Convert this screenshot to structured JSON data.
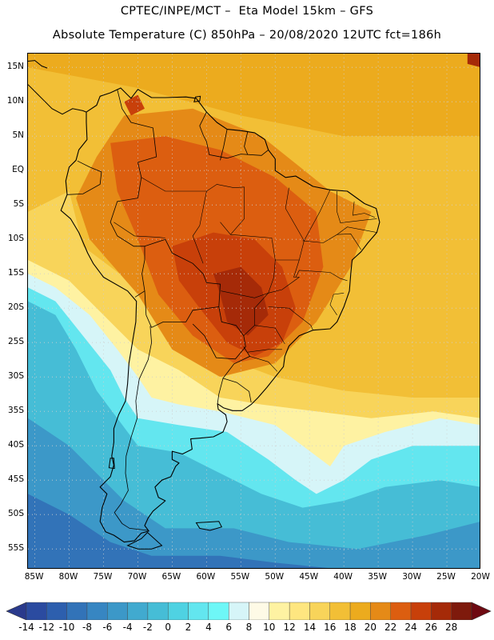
{
  "header": {
    "title_line1": "CPTEC/INPE/MCT –  Eta Model 15km – GFS",
    "title_line2": "Absolute Temperature (C) 850hPa – 20/08/2020 12UTC fct=186h"
  },
  "map": {
    "lat_labels": [
      "15N",
      "10N",
      "5N",
      "EQ",
      "5S",
      "10S",
      "15S",
      "20S",
      "25S",
      "30S",
      "35S",
      "40S",
      "45S",
      "50S",
      "55S"
    ],
    "lat_values": [
      15,
      10,
      5,
      0,
      -5,
      -10,
      -15,
      -20,
      -25,
      -30,
      -35,
      -40,
      -45,
      -50,
      -55
    ],
    "lon_labels": [
      "85W",
      "80W",
      "75W",
      "70W",
      "65W",
      "60W",
      "55W",
      "50W",
      "45W",
      "40W",
      "35W",
      "30W",
      "25W",
      "20W"
    ],
    "lon_values": [
      -85,
      -80,
      -75,
      -70,
      -65,
      -60,
      -55,
      -50,
      -45,
      -40,
      -35,
      -30,
      -25,
      -20
    ],
    "extent": {
      "lon_min": -86,
      "lon_max": -20,
      "lat_min": -58,
      "lat_max": 17
    },
    "gridlines": "dotted"
  },
  "colorbar": {
    "labels": [
      "-14",
      "-12",
      "-10",
      "-8",
      "-6",
      "-4",
      "-2",
      "0",
      "2",
      "4",
      "6",
      "8",
      "10",
      "12",
      "14",
      "16",
      "18",
      "20",
      "22",
      "24",
      "26",
      "28"
    ],
    "low_arrow_color": "#2a3a8c",
    "high_arrow_color": "#6e0a12",
    "colors": [
      "#2b4ba0",
      "#2d5fae",
      "#3273b8",
      "#3786c2",
      "#3c98c8",
      "#41aacf",
      "#46bdd6",
      "#4fd2e2",
      "#63e6ef",
      "#6ef7f7",
      "#d6f5f8",
      "#fefae6",
      "#fef2a2",
      "#fee680",
      "#f8d45a",
      "#f2bf36",
      "#ecab1e",
      "#e58a17",
      "#dc5e10",
      "#c8400a",
      "#a52a08",
      "#7e1a0c"
    ]
  },
  "scale": {
    "temperature_colors": [
      {
        "t": -14,
        "c": "#2b4ba0"
      },
      {
        "t": -12,
        "c": "#2d5fae"
      },
      {
        "t": -10,
        "c": "#3273b8"
      },
      {
        "t": -8,
        "c": "#3786c2"
      },
      {
        "t": -6,
        "c": "#3c98c8"
      },
      {
        "t": -4,
        "c": "#41aacf"
      },
      {
        "t": -2,
        "c": "#46bdd6"
      },
      {
        "t": 0,
        "c": "#4fd2e2"
      },
      {
        "t": 2,
        "c": "#63e6ef"
      },
      {
        "t": 4,
        "c": "#6ef7f7"
      },
      {
        "t": 6,
        "c": "#d6f5f8"
      },
      {
        "t": 8,
        "c": "#fefae6"
      },
      {
        "t": 10,
        "c": "#fef2a2"
      },
      {
        "t": 12,
        "c": "#fee680"
      },
      {
        "t": 14,
        "c": "#f8d45a"
      },
      {
        "t": 16,
        "c": "#f2bf36"
      },
      {
        "t": 18,
        "c": "#ecab1e"
      },
      {
        "t": 20,
        "c": "#e58a17"
      },
      {
        "t": 22,
        "c": "#dc5e10"
      },
      {
        "t": 24,
        "c": "#c8400a"
      },
      {
        "t": 26,
        "c": "#a52a08"
      },
      {
        "t": 28,
        "c": "#7e1a0c"
      }
    ]
  }
}
